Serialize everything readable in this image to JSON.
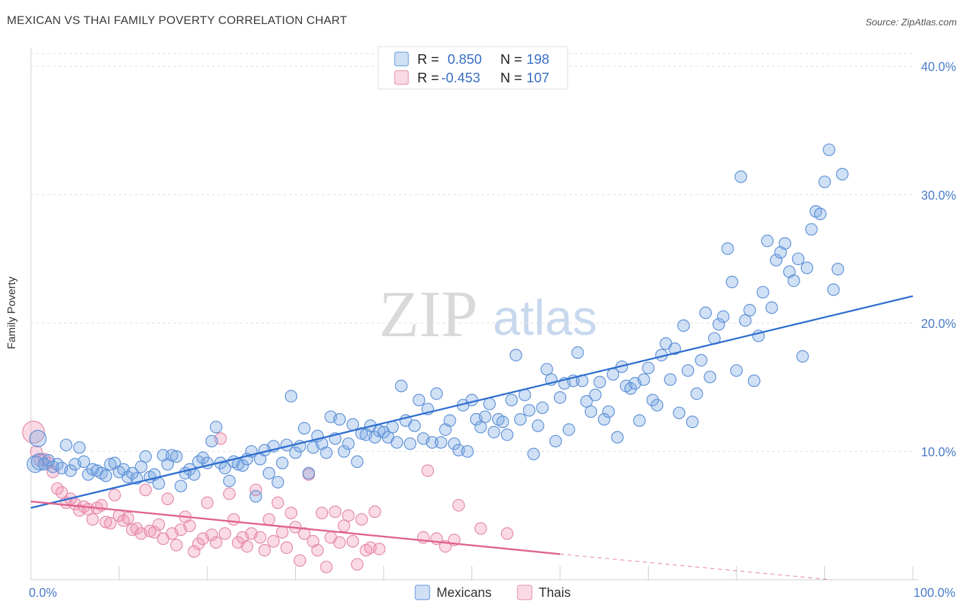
{
  "title": "MEXICAN VS THAI FAMILY POVERTY CORRELATION CHART",
  "source": "Source: ZipAtlas.com",
  "watermark": {
    "zip": "ZIP",
    "atlas": "atlas"
  },
  "colors": {
    "mexicans_fill": "rgba(120,165,225,0.35)",
    "mexicans_stroke": "#5b8fd6",
    "mexicans_line": "#2f6fcf",
    "thais_fill": "rgba(240,150,180,0.35)",
    "thais_stroke": "#e387a8",
    "thais_line": "#e0628e",
    "grid": "#dddddd",
    "tick_label": "#4a7cc9"
  },
  "legend": {
    "rows": [
      {
        "r_label": "R =",
        "r_value": "0.850",
        "n_label": "N =",
        "n_value": "198"
      },
      {
        "r_label": "R =",
        "r_value": "-0.453",
        "n_label": "N =",
        "n_value": "107"
      }
    ]
  },
  "bottom_legend": [
    "Mexicans",
    "Thais"
  ],
  "chart_data": {
    "type": "scatter",
    "title": "MEXICAN VS THAI FAMILY POVERTY CORRELATION CHART",
    "xlabel": "",
    "ylabel": "Family Poverty",
    "xlim": [
      0,
      100
    ],
    "ylim": [
      0,
      41
    ],
    "x_tick_labels": [
      "0.0%",
      "100.0%"
    ],
    "y_ticks": [
      10,
      20,
      30,
      40
    ],
    "y_tick_labels": [
      "10.0%",
      "20.0%",
      "30.0%",
      "40.0%"
    ],
    "grid": true,
    "legend_position": "top-center",
    "series": [
      {
        "name": "Mexicans",
        "R": 0.85,
        "N": 198,
        "trend": {
          "x": [
            0,
            100
          ],
          "y": [
            5.6,
            22.1
          ]
        },
        "points": [
          [
            0.5,
            9.0
          ],
          [
            0.8,
            11.0
          ],
          [
            1,
            9.2
          ],
          [
            1.5,
            9.0
          ],
          [
            2,
            9.3
          ],
          [
            2.5,
            8.8
          ],
          [
            3,
            9.0
          ],
          [
            3.5,
            8.7
          ],
          [
            4,
            10.5
          ],
          [
            4.5,
            8.5
          ],
          [
            5,
            9.0
          ],
          [
            5.5,
            10.3
          ],
          [
            6,
            9.2
          ],
          [
            6.5,
            8.2
          ],
          [
            7,
            8.6
          ],
          [
            7.5,
            8.5
          ],
          [
            8,
            8.3
          ],
          [
            8.5,
            8.1
          ],
          [
            9,
            9.0
          ],
          [
            9.5,
            9.1
          ],
          [
            10,
            8.4
          ],
          [
            10.5,
            8.6
          ],
          [
            11,
            8.0
          ],
          [
            11.5,
            8.3
          ],
          [
            12,
            7.9
          ],
          [
            12.5,
            8.8
          ],
          [
            13,
            9.6
          ],
          [
            13.5,
            8.0
          ],
          [
            14,
            8.2
          ],
          [
            14.5,
            7.5
          ],
          [
            15,
            9.7
          ],
          [
            15.5,
            9.0
          ],
          [
            16,
            9.7
          ],
          [
            16.5,
            9.6
          ],
          [
            17,
            7.3
          ],
          [
            17.5,
            8.3
          ],
          [
            18,
            8.6
          ],
          [
            18.5,
            8.2
          ],
          [
            19,
            9.2
          ],
          [
            19.5,
            9.5
          ],
          [
            20,
            9.1
          ],
          [
            20.5,
            10.8
          ],
          [
            21,
            11.9
          ],
          [
            21.5,
            9.1
          ],
          [
            22,
            8.7
          ],
          [
            22.5,
            7.7
          ],
          [
            23,
            9.2
          ],
          [
            23.5,
            9.0
          ],
          [
            24,
            8.9
          ],
          [
            24.5,
            9.4
          ],
          [
            25,
            10.0
          ],
          [
            25.5,
            6.5
          ],
          [
            26,
            9.4
          ],
          [
            26.5,
            10.1
          ],
          [
            27,
            8.3
          ],
          [
            27.5,
            10.4
          ],
          [
            28,
            7.6
          ],
          [
            28.5,
            9.1
          ],
          [
            29,
            10.5
          ],
          [
            29.5,
            14.3
          ],
          [
            30,
            9.9
          ],
          [
            30.5,
            10.4
          ],
          [
            31,
            11.8
          ],
          [
            31.5,
            8.3
          ],
          [
            32,
            10.3
          ],
          [
            32.5,
            11.2
          ],
          [
            33,
            10.6
          ],
          [
            33.5,
            9.9
          ],
          [
            34,
            12.7
          ],
          [
            34.5,
            11.0
          ],
          [
            35,
            12.5
          ],
          [
            35.5,
            10.0
          ],
          [
            36,
            10.6
          ],
          [
            36.5,
            12.1
          ],
          [
            37,
            9.2
          ],
          [
            37.5,
            11.4
          ],
          [
            38,
            11.3
          ],
          [
            38.5,
            12.0
          ],
          [
            39,
            11.1
          ],
          [
            39.5,
            11.6
          ],
          [
            40,
            11.5
          ],
          [
            40.5,
            11.1
          ],
          [
            41,
            11.9
          ],
          [
            41.5,
            10.7
          ],
          [
            42,
            15.1
          ],
          [
            42.5,
            12.4
          ],
          [
            43,
            10.6
          ],
          [
            43.5,
            12.0
          ],
          [
            44,
            14.0
          ],
          [
            44.5,
            11.0
          ],
          [
            45,
            13.3
          ],
          [
            45.5,
            10.7
          ],
          [
            46,
            14.5
          ],
          [
            46.5,
            10.7
          ],
          [
            47,
            11.7
          ],
          [
            47.5,
            12.4
          ],
          [
            48,
            10.6
          ],
          [
            48.5,
            10.1
          ],
          [
            49,
            13.6
          ],
          [
            49.5,
            10.0
          ],
          [
            50,
            14.0
          ],
          [
            50.5,
            12.5
          ],
          [
            51,
            11.9
          ],
          [
            51.5,
            12.7
          ],
          [
            52,
            13.7
          ],
          [
            52.5,
            11.5
          ],
          [
            53,
            12.5
          ],
          [
            53.5,
            12.3
          ],
          [
            54,
            11.3
          ],
          [
            54.5,
            14.0
          ],
          [
            55,
            17.5
          ],
          [
            55.5,
            12.5
          ],
          [
            56,
            14.4
          ],
          [
            56.5,
            13.2
          ],
          [
            57,
            9.8
          ],
          [
            57.5,
            12.0
          ],
          [
            58,
            13.4
          ],
          [
            58.5,
            16.4
          ],
          [
            59,
            15.6
          ],
          [
            59.5,
            10.8
          ],
          [
            60,
            14.2
          ],
          [
            60.5,
            15.3
          ],
          [
            61,
            11.7
          ],
          [
            61.5,
            15.5
          ],
          [
            62,
            17.7
          ],
          [
            62.5,
            15.5
          ],
          [
            63,
            13.9
          ],
          [
            63.5,
            13.1
          ],
          [
            64,
            14.4
          ],
          [
            64.5,
            15.4
          ],
          [
            65,
            12.5
          ],
          [
            65.5,
            13.1
          ],
          [
            66,
            16.0
          ],
          [
            66.5,
            11.1
          ],
          [
            67,
            16.6
          ],
          [
            67.5,
            15.1
          ],
          [
            68,
            14.9
          ],
          [
            68.5,
            15.3
          ],
          [
            69,
            12.4
          ],
          [
            69.5,
            15.6
          ],
          [
            70,
            16.5
          ],
          [
            70.5,
            14.0
          ],
          [
            71,
            13.6
          ],
          [
            71.5,
            17.5
          ],
          [
            72,
            18.4
          ],
          [
            72.5,
            15.6
          ],
          [
            73,
            18.0
          ],
          [
            73.5,
            13.0
          ],
          [
            74,
            19.8
          ],
          [
            74.5,
            16.3
          ],
          [
            75,
            12.3
          ],
          [
            75.5,
            14.5
          ],
          [
            76,
            17.1
          ],
          [
            76.5,
            20.8
          ],
          [
            77,
            15.8
          ],
          [
            77.5,
            18.8
          ],
          [
            78,
            19.9
          ],
          [
            78.5,
            20.5
          ],
          [
            79,
            25.8
          ],
          [
            79.5,
            23.2
          ],
          [
            80,
            16.3
          ],
          [
            80.5,
            31.4
          ],
          [
            81,
            20.2
          ],
          [
            81.5,
            21.0
          ],
          [
            82,
            15.5
          ],
          [
            82.5,
            19.0
          ],
          [
            83,
            22.4
          ],
          [
            83.5,
            26.4
          ],
          [
            84,
            21.2
          ],
          [
            84.5,
            24.9
          ],
          [
            85,
            25.5
          ],
          [
            85.5,
            26.2
          ],
          [
            86,
            24.0
          ],
          [
            86.5,
            23.3
          ],
          [
            87,
            25.0
          ],
          [
            87.5,
            17.4
          ],
          [
            88,
            24.3
          ],
          [
            88.5,
            27.3
          ],
          [
            89,
            28.7
          ],
          [
            89.5,
            28.5
          ],
          [
            90,
            31.0
          ],
          [
            90.5,
            33.5
          ],
          [
            91,
            22.6
          ],
          [
            91.5,
            24.2
          ],
          [
            92,
            31.6
          ]
        ]
      },
      {
        "name": "Thais",
        "R": -0.453,
        "N": 107,
        "trend": {
          "x": [
            0,
            60
          ],
          "y": [
            6.1,
            2.0
          ]
        },
        "trend_dashed": {
          "x": [
            60,
            100
          ],
          "y": [
            2.0,
            -0.6
          ]
        },
        "points": [
          [
            0.3,
            11.5
          ],
          [
            0.6,
            10.0
          ],
          [
            1,
            9.3
          ],
          [
            1.5,
            9.4
          ],
          [
            2,
            9.1
          ],
          [
            2.5,
            8.4
          ],
          [
            3,
            7.1
          ],
          [
            3.5,
            6.8
          ],
          [
            4,
            6.0
          ],
          [
            4.5,
            6.3
          ],
          [
            5,
            5.9
          ],
          [
            5.5,
            5.4
          ],
          [
            6,
            5.7
          ],
          [
            6.5,
            5.5
          ],
          [
            7,
            4.7
          ],
          [
            7.5,
            5.6
          ],
          [
            8,
            5.8
          ],
          [
            8.5,
            4.5
          ],
          [
            9,
            4.4
          ],
          [
            9.5,
            6.6
          ],
          [
            10,
            5.0
          ],
          [
            10.5,
            4.6
          ],
          [
            11,
            4.8
          ],
          [
            11.5,
            3.9
          ],
          [
            12,
            4.0
          ],
          [
            12.5,
            3.6
          ],
          [
            13,
            7.0
          ],
          [
            13.5,
            3.8
          ],
          [
            14,
            3.7
          ],
          [
            14.5,
            4.3
          ],
          [
            15,
            3.2
          ],
          [
            15.5,
            6.3
          ],
          [
            16,
            3.6
          ],
          [
            16.5,
            2.7
          ],
          [
            17,
            3.9
          ],
          [
            17.5,
            4.9
          ],
          [
            18,
            4.2
          ],
          [
            18.5,
            2.2
          ],
          [
            19,
            2.8
          ],
          [
            19.5,
            3.2
          ],
          [
            20,
            6.0
          ],
          [
            20.5,
            3.5
          ],
          [
            21,
            2.9
          ],
          [
            21.5,
            11.0
          ],
          [
            22,
            3.6
          ],
          [
            22.5,
            6.7
          ],
          [
            23,
            4.7
          ],
          [
            23.5,
            2.9
          ],
          [
            24,
            3.3
          ],
          [
            24.5,
            2.6
          ],
          [
            25,
            3.6
          ],
          [
            25.5,
            7.0
          ],
          [
            26,
            3.3
          ],
          [
            26.5,
            2.3
          ],
          [
            27,
            4.7
          ],
          [
            27.5,
            3.0
          ],
          [
            28,
            6.0
          ],
          [
            28.5,
            3.7
          ],
          [
            29,
            2.5
          ],
          [
            29.5,
            5.2
          ],
          [
            30,
            4.1
          ],
          [
            30.5,
            1.5
          ],
          [
            31,
            3.6
          ],
          [
            31.5,
            8.2
          ],
          [
            32,
            3.0
          ],
          [
            32.5,
            2.3
          ],
          [
            33,
            5.2
          ],
          [
            33.5,
            1.0
          ],
          [
            34,
            3.3
          ],
          [
            34.5,
            5.3
          ],
          [
            35,
            2.9
          ],
          [
            35.5,
            4.2
          ],
          [
            36,
            5.0
          ],
          [
            36.5,
            3.0
          ],
          [
            37,
            1.2
          ],
          [
            37.5,
            4.7
          ],
          [
            38,
            2.3
          ],
          [
            38.5,
            2.5
          ],
          [
            39,
            5.3
          ],
          [
            39.5,
            2.4
          ],
          [
            44.5,
            3.3
          ],
          [
            45,
            8.5
          ],
          [
            46,
            3.2
          ],
          [
            47,
            2.6
          ],
          [
            48,
            3.1
          ],
          [
            48.5,
            5.8
          ],
          [
            51,
            4.0
          ],
          [
            54,
            3.6
          ]
        ]
      }
    ]
  }
}
